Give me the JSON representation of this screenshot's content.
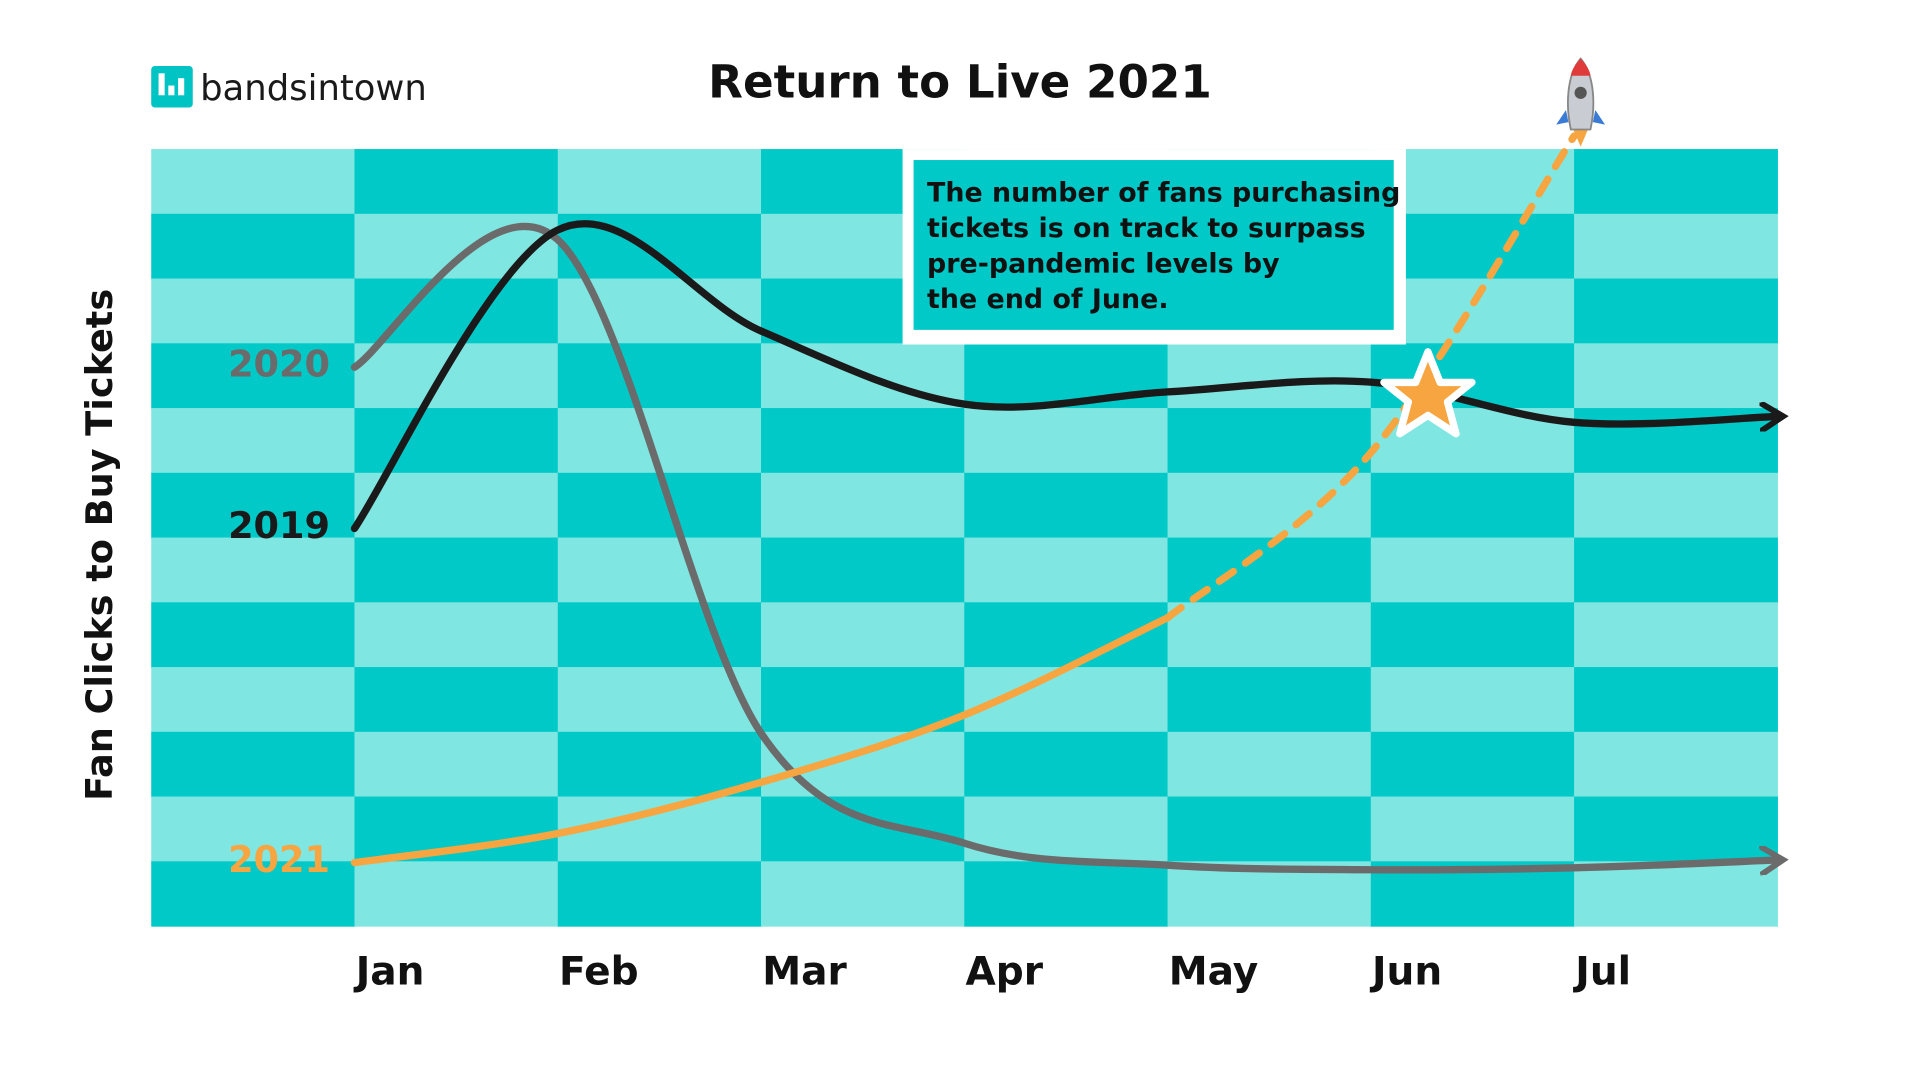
{
  "brand": "bandsintown",
  "chart_data": {
    "type": "line",
    "title": "Return to Live 2021",
    "y_label": "Fan Clicks to Buy Tickets",
    "categories": [
      "Jan",
      "Feb",
      "Mar",
      "Apr",
      "May",
      "Jun",
      "Jul",
      null
    ],
    "ylim": [
      0,
      12
    ],
    "series": [
      {
        "name": "2020",
        "color": "#6b6b6b",
        "values": [
          8.63,
          10.6,
          2.98,
          1.28,
          0.94,
          0.87,
          0.9,
          1.02
        ]
      },
      {
        "name": "2019",
        "color": "#1a1a1a",
        "values": [
          6.14,
          10.75,
          9.19,
          8.06,
          8.25,
          8.4,
          7.78,
          7.87
        ]
      },
      {
        "name": "2021",
        "color": "#f7a541",
        "values": [
          0.98,
          1.43,
          2.22,
          3.26,
          4.76,
          7.31,
          12.2,
          null
        ],
        "dash_start_index": 4
      }
    ],
    "annotation": [
      "The number of fans purchasing",
      "tickets is on track to surpass",
      "pre-pandemic levels by",
      "the end of June."
    ]
  }
}
